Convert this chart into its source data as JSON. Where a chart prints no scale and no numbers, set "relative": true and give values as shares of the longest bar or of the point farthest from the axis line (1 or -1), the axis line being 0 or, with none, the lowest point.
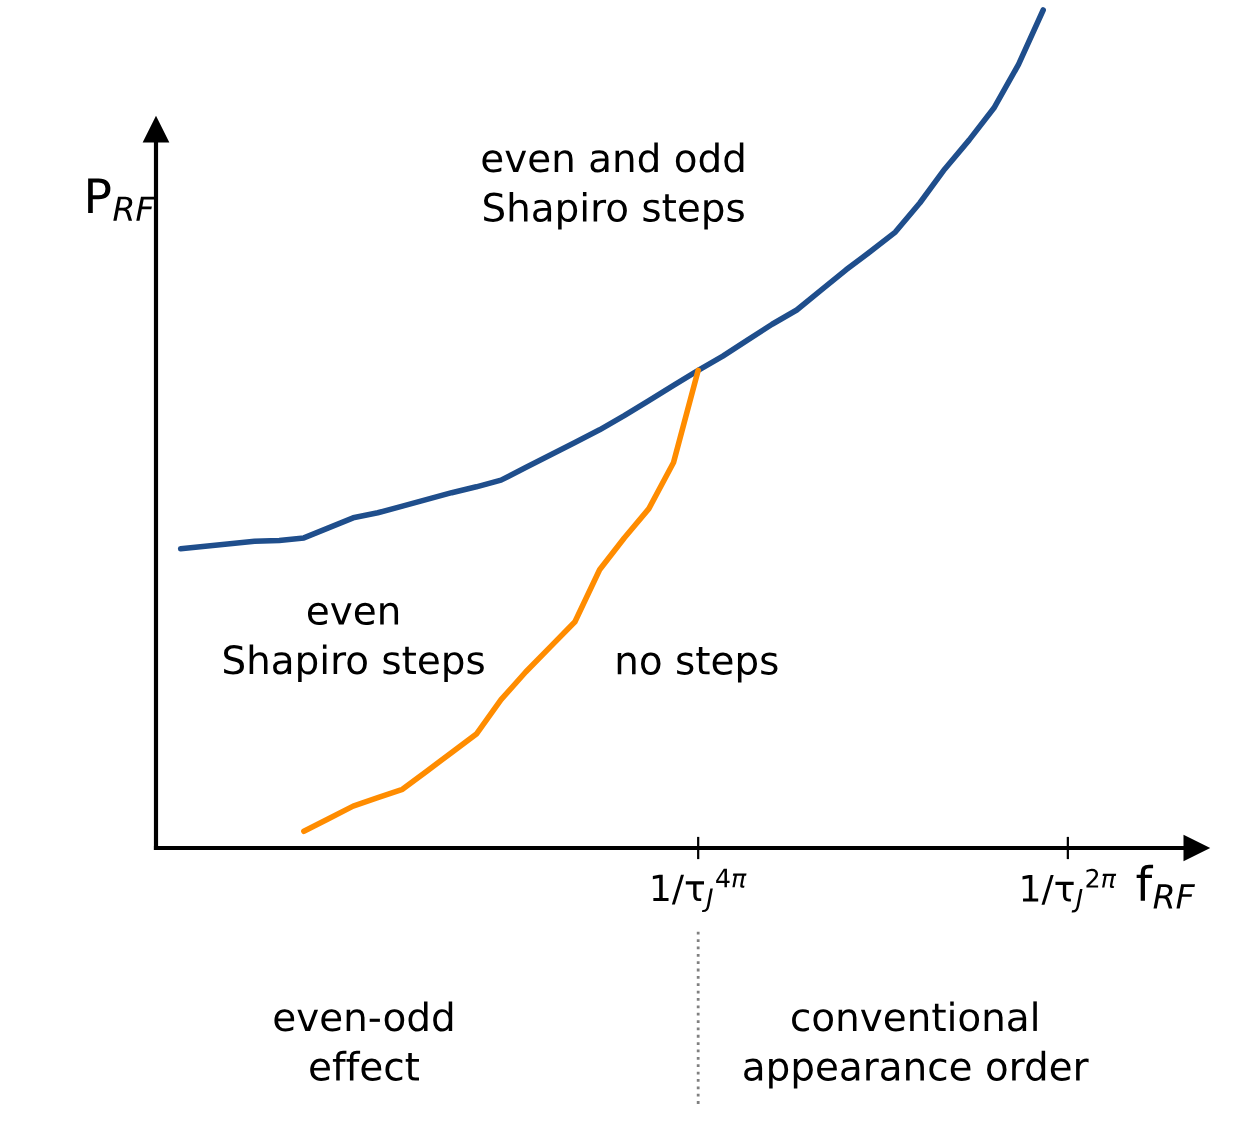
{
  "chart_data": {
    "type": "line",
    "relative": true,
    "xlabel": "f$_{RF}$",
    "ylabel": "P$_{RF}$",
    "categories": [
      null,
      null,
      null,
      null,
      null,
      null,
      null,
      null,
      null,
      null,
      null,
      null,
      null,
      null,
      null,
      null,
      null,
      null,
      null,
      null,
      null,
      null,
      "1/τ$_{J}$$^{4π}$",
      null,
      null,
      null,
      null,
      null,
      null,
      null,
      null,
      null,
      null,
      null,
      null,
      null,
      null,
      "1/τ$_{J}$$^{2π}$",
      null,
      null,
      null,
      null,
      null
    ],
    "series": [
      {
        "color": "#1f4e8c",
        "values": [
          null,
          0.357,
          0.36,
          0.363,
          0.366,
          0.367,
          0.37,
          0.382,
          0.394,
          0.4,
          0.408,
          0.416,
          0.424,
          0.431,
          0.439,
          0.454,
          0.469,
          0.484,
          0.499,
          0.516,
          0.534,
          0.552,
          0.57,
          0.587,
          0.606,
          0.625,
          0.642,
          0.666,
          0.69,
          0.712,
          0.735,
          0.77,
          0.81,
          0.845,
          0.883,
          0.935,
          1.0,
          null,
          null,
          null,
          null,
          null,
          null
        ]
      },
      {
        "color": "#ff8c00",
        "values": [
          null,
          null,
          null,
          null,
          null,
          null,
          0.02,
          0.035,
          0.05,
          0.06,
          0.07,
          0.092,
          0.114,
          0.136,
          0.177,
          0.21,
          0.24,
          0.27,
          0.332,
          0.37,
          0.405,
          0.46,
          0.57,
          null,
          null,
          null,
          null,
          null,
          null,
          null,
          null,
          null,
          null,
          null,
          null,
          null,
          null,
          null,
          null,
          null,
          null,
          null,
          null
        ]
      }
    ],
    "annotations": [
      "even and odd\nShapiro steps",
      "even\nShapiro steps",
      "no steps",
      "even-odd\neffect",
      "conventional\nappearance order"
    ],
    "grid": false,
    "legend": false,
    "marker": "none",
    "line_style": "solid"
  }
}
